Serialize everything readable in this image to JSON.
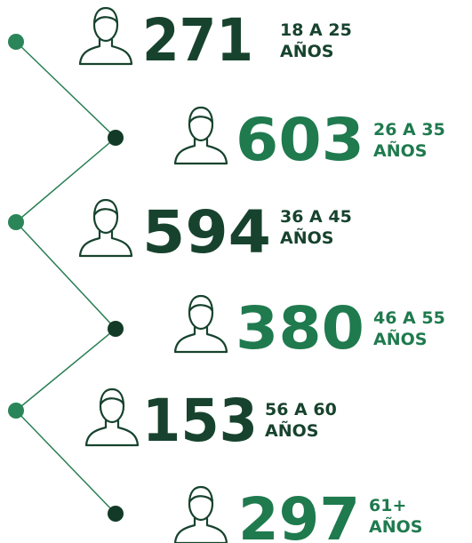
{
  "items": [
    {
      "count": 271,
      "range": "18 A 25",
      "unit": "AÑOS"
    },
    {
      "count": 603,
      "range": "26 A 35",
      "unit": "AÑOS"
    },
    {
      "count": 594,
      "range": "36 A 45",
      "unit": "AÑOS"
    },
    {
      "count": 380,
      "range": "46 A 55",
      "unit": "AÑOS"
    },
    {
      "count": 153,
      "range": "56 A 60",
      "unit": "AÑOS"
    },
    {
      "count": 297,
      "range": "61+",
      "unit": "AÑOS"
    }
  ]
}
